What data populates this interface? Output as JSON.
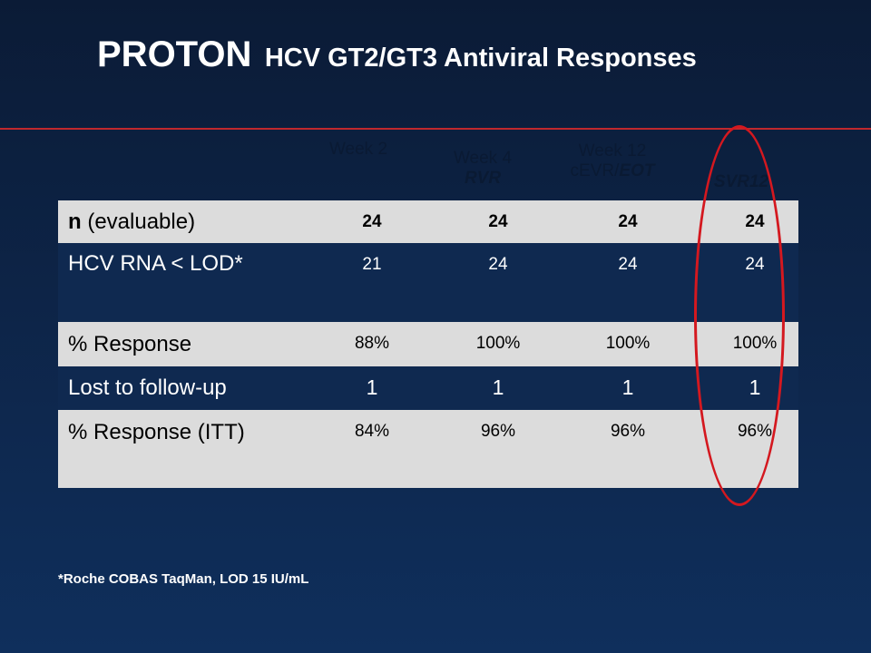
{
  "title": {
    "main": "PROTON",
    "sub": "HCV GT2/GT3 Antiviral Responses"
  },
  "columns": [
    {
      "line1": "Week 2",
      "line2": ""
    },
    {
      "line1": "Week 4",
      "line2": "RVR"
    },
    {
      "line1": "Week 12",
      "line2_plain": "cEVR/",
      "line2_emph": "EOT"
    },
    {
      "line1": "",
      "line2": "SVR12"
    }
  ],
  "rows": [
    {
      "label_bold": "n",
      "label_rest": " (evaluable)",
      "values": [
        "24",
        "24",
        "24",
        "24"
      ]
    },
    {
      "label": "HCV RNA < LOD*",
      "values": [
        "21",
        "24",
        "24",
        "24"
      ]
    },
    {
      "label": "% Response",
      "values": [
        "88%",
        "100%",
        "100%",
        "100%"
      ]
    },
    {
      "label": "Lost to follow-up",
      "values": [
        "1",
        "1",
        "1",
        "1"
      ]
    },
    {
      "label": "% Response (ITT)",
      "values": [
        "84%",
        "96%",
        "96%",
        "96%"
      ]
    }
  ],
  "footnote": "*Roche COBAS TaqMan, LOD 15 IU/mL",
  "colors": {
    "accent_line": "#c0282d",
    "highlight_ellipse": "#d4181f",
    "row_light": "#dcdcdc"
  }
}
